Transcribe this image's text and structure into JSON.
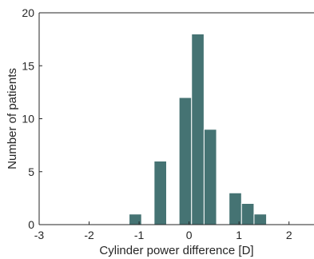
{
  "chart_data": {
    "type": "bar",
    "subtype": "histogram",
    "bin_edges": [
      -1.2,
      -0.95,
      -0.7,
      -0.45,
      -0.2,
      0.05,
      0.3,
      0.55,
      0.8,
      1.05,
      1.3,
      1.55,
      1.8,
      2.05
    ],
    "values": [
      1,
      0,
      6,
      0,
      12,
      18,
      9,
      0,
      3,
      2,
      1,
      0,
      0
    ],
    "xlabel": "Cylinder power difference [D]",
    "ylabel": "Number of patients",
    "xlim": [
      -3,
      2.5
    ],
    "ylim": [
      0,
      20
    ],
    "xticks": [
      -3,
      -2,
      -1,
      0,
      1,
      2
    ],
    "xtick_labels": [
      "-3",
      "-2",
      "-1",
      "0",
      "1",
      "2"
    ],
    "yticks": [
      0,
      5,
      10,
      15,
      20
    ],
    "ytick_labels": [
      "0",
      "5",
      "10",
      "15",
      "20"
    ],
    "bar_color": "#457373",
    "edge_color": "#ffffff",
    "grid": false
  }
}
